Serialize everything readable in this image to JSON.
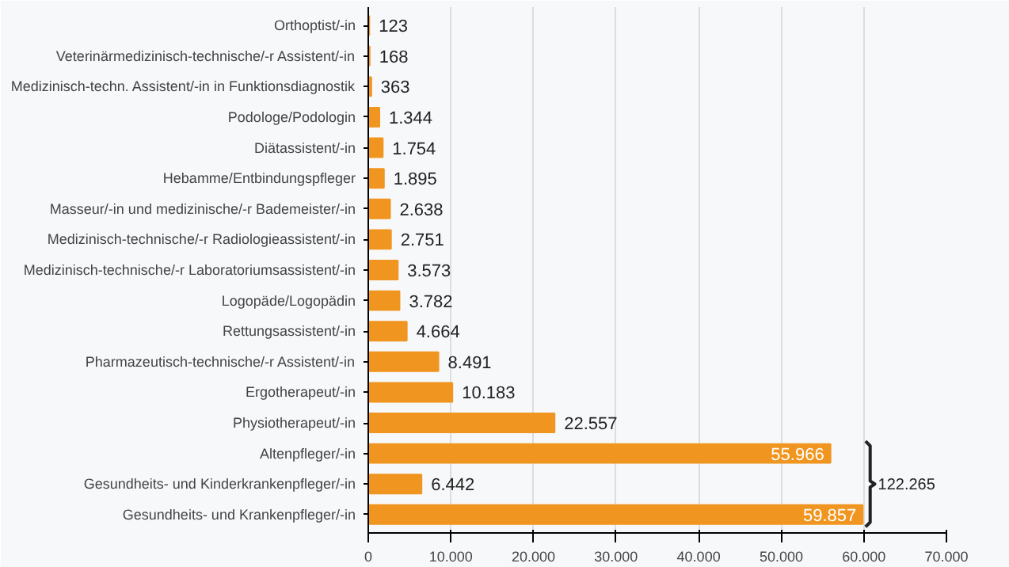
{
  "chart_data": {
    "type": "bar",
    "orientation": "horizontal",
    "categories": [
      "Orthoptist/-in",
      "Veterinärmedizinisch-technische/-r Assistent/-in",
      "Medizinisch-techn. Assistent/-in in Funktionsdiagnostik",
      "Podologe/Podologin",
      "Diätassistent/-in",
      "Hebamme/Entbindungspfleger",
      "Masseur/-in und medizinische/-r Bademeister/-in",
      "Medizinisch-technische/-r Radiologieassistent/-in",
      "Medizinisch-technische/-r Laboratoriumsassistent/-in",
      "Logopäde/Logopädin",
      "Rettungsassistent/-in",
      "Pharmazeutisch-technische/-r Assistent/-in",
      "Ergotherapeut/-in",
      "Physiotherapeut/-in",
      "Altenpfleger/-in",
      "Gesundheits- und Kinderkrankenpfleger/-in",
      "Gesundheits- und Krankenpfleger/-in"
    ],
    "values": [
      123,
      168,
      363,
      1344,
      1754,
      1895,
      2638,
      2751,
      3573,
      3782,
      4664,
      8491,
      10183,
      22557,
      55966,
      6442,
      59857
    ],
    "value_labels": [
      "123",
      "168",
      "363",
      "1.344",
      "1.754",
      "1.895",
      "2.638",
      "2.751",
      "3.573",
      "3.782",
      "4.664",
      "8.491",
      "10.183",
      "22.557",
      "55.966",
      "6.442",
      "59.857"
    ],
    "color": "#f0951f",
    "xlim": [
      0,
      70000
    ],
    "xticks": [
      {
        "value": 0,
        "label": "0"
      },
      {
        "value": 10000,
        "label": "10.000"
      },
      {
        "value": 20000,
        "label": "20.000"
      },
      {
        "value": 30000,
        "label": "30.000"
      },
      {
        "value": 40000,
        "label": "40.000"
      },
      {
        "value": 50000,
        "label": "50.000"
      },
      {
        "value": 60000,
        "label": "60.000"
      },
      {
        "value": 70000,
        "label": "70.000"
      }
    ],
    "grid": "x",
    "annotations": [
      "122.265"
    ]
  }
}
